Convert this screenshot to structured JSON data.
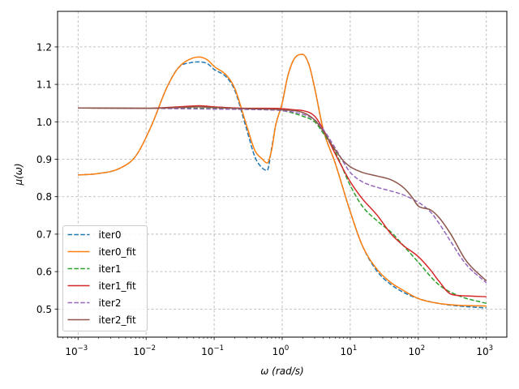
{
  "chart_data": {
    "type": "line",
    "xlabel": "ω (rad/s)",
    "ylabel": "μ(ω)",
    "xscale": "log",
    "xlim": [
      0.0005,
      2000
    ],
    "ylim": [
      0.425,
      1.295
    ],
    "grid": true,
    "legend": "lower-left",
    "xticks": [
      {
        "value": 0.001,
        "base": "10",
        "exp": "−3"
      },
      {
        "value": 0.01,
        "base": "10",
        "exp": "−2"
      },
      {
        "value": 0.1,
        "base": "10",
        "exp": "−1"
      },
      {
        "value": 1,
        "base": "10",
        "exp": "0"
      },
      {
        "value": 10,
        "base": "10",
        "exp": "1"
      },
      {
        "value": 100,
        "base": "10",
        "exp": "2"
      },
      {
        "value": 1000,
        "base": "10",
        "exp": "3"
      }
    ],
    "yticks": [
      {
        "value": 0.5,
        "label": "0.5"
      },
      {
        "value": 0.6,
        "label": "0.6"
      },
      {
        "value": 0.7,
        "label": "0.7"
      },
      {
        "value": 0.8,
        "label": "0.8"
      },
      {
        "value": 0.9,
        "label": "0.9"
      },
      {
        "value": 1.0,
        "label": "1.0"
      },
      {
        "value": 1.1,
        "label": "1.1"
      },
      {
        "value": 1.2,
        "label": "1.2"
      }
    ],
    "series": [
      {
        "name": "iter0",
        "color": "#1f77b4",
        "dash": true,
        "x": [
          0.001,
          0.002,
          0.004,
          0.007,
          0.012,
          0.02,
          0.03,
          0.045,
          0.06,
          0.08,
          0.1,
          0.15,
          0.2,
          0.3,
          0.4,
          0.5,
          0.6,
          0.7,
          0.8,
          1,
          1.2,
          1.5,
          2,
          2.5,
          3,
          4,
          6,
          10,
          15,
          25,
          40,
          60,
          100,
          200,
          400,
          1000
        ],
        "y": [
          0.858,
          0.862,
          0.875,
          0.908,
          0.99,
          1.09,
          1.145,
          1.158,
          1.16,
          1.155,
          1.14,
          1.12,
          1.085,
          0.98,
          0.905,
          0.878,
          0.87,
          0.93,
          0.99,
          1.05,
          1.12,
          1.168,
          1.18,
          1.15,
          1.09,
          0.98,
          0.89,
          0.76,
          0.67,
          0.6,
          0.565,
          0.545,
          0.528,
          0.515,
          0.508,
          0.503
        ]
      },
      {
        "name": "iter0_fit",
        "color": "#ff7f0e",
        "dash": false,
        "x": [
          0.001,
          0.002,
          0.004,
          0.007,
          0.012,
          0.02,
          0.03,
          0.045,
          0.06,
          0.08,
          0.1,
          0.15,
          0.2,
          0.3,
          0.4,
          0.5,
          0.6,
          0.7,
          0.8,
          1,
          1.2,
          1.5,
          2,
          2.5,
          3,
          4,
          6,
          10,
          15,
          25,
          40,
          60,
          100,
          200,
          400,
          1000
        ],
        "y": [
          0.858,
          0.862,
          0.875,
          0.908,
          0.99,
          1.09,
          1.145,
          1.168,
          1.173,
          1.165,
          1.148,
          1.125,
          1.09,
          0.99,
          0.922,
          0.902,
          0.89,
          0.925,
          0.99,
          1.05,
          1.12,
          1.168,
          1.18,
          1.15,
          1.09,
          0.98,
          0.89,
          0.76,
          0.67,
          0.605,
          0.57,
          0.55,
          0.528,
          0.515,
          0.51,
          0.508
        ]
      },
      {
        "name": "iter1",
        "color": "#2ca02c",
        "dash": true,
        "x": [
          0.001,
          0.01,
          0.03,
          0.06,
          0.1,
          0.3,
          0.6,
          1,
          2,
          3,
          4,
          6,
          10,
          15,
          25,
          40,
          60,
          100,
          200,
          400,
          1000
        ],
        "y": [
          1.037,
          1.036,
          1.036,
          1.036,
          1.035,
          1.034,
          1.033,
          1.03,
          1.015,
          1.0,
          0.97,
          0.92,
          0.83,
          0.775,
          0.735,
          0.705,
          0.67,
          0.625,
          0.565,
          0.535,
          0.515
        ]
      },
      {
        "name": "iter1_fit",
        "color": "#d62728",
        "dash": false,
        "x": [
          0.001,
          0.01,
          0.03,
          0.06,
          0.1,
          0.3,
          0.6,
          1,
          1.5,
          2,
          3,
          4,
          6,
          10,
          15,
          25,
          40,
          60,
          100,
          150,
          200,
          300,
          500,
          1000
        ],
        "y": [
          1.037,
          1.036,
          1.04,
          1.043,
          1.04,
          1.036,
          1.036,
          1.035,
          1.032,
          1.03,
          1.015,
          0.98,
          0.915,
          0.84,
          0.795,
          0.75,
          0.7,
          0.67,
          0.64,
          0.605,
          0.575,
          0.54,
          0.535,
          0.533
        ]
      },
      {
        "name": "iter2",
        "color": "#9467bd",
        "dash": true,
        "x": [
          0.001,
          0.01,
          0.03,
          0.1,
          0.3,
          0.6,
          1,
          2,
          3,
          4,
          6,
          10,
          15,
          25,
          40,
          60,
          100,
          150,
          200,
          300,
          500,
          1000
        ],
        "y": [
          1.037,
          1.036,
          1.035,
          1.034,
          1.033,
          1.032,
          1.03,
          1.02,
          1.005,
          0.98,
          0.93,
          0.865,
          0.84,
          0.825,
          0.815,
          0.805,
          0.785,
          0.76,
          0.73,
          0.68,
          0.62,
          0.57
        ]
      },
      {
        "name": "iter2_fit",
        "color": "#8c564b",
        "dash": false,
        "x": [
          0.001,
          0.01,
          0.03,
          0.06,
          0.1,
          0.3,
          0.6,
          1,
          2,
          3,
          4,
          6,
          8,
          10,
          15,
          25,
          40,
          60,
          80,
          100,
          150,
          200,
          300,
          500,
          1000
        ],
        "y": [
          1.037,
          1.036,
          1.038,
          1.04,
          1.038,
          1.035,
          1.034,
          1.032,
          1.025,
          1.005,
          0.975,
          0.925,
          0.895,
          0.88,
          0.865,
          0.855,
          0.845,
          0.825,
          0.8,
          0.775,
          0.765,
          0.745,
          0.7,
          0.63,
          0.575
        ]
      }
    ]
  }
}
